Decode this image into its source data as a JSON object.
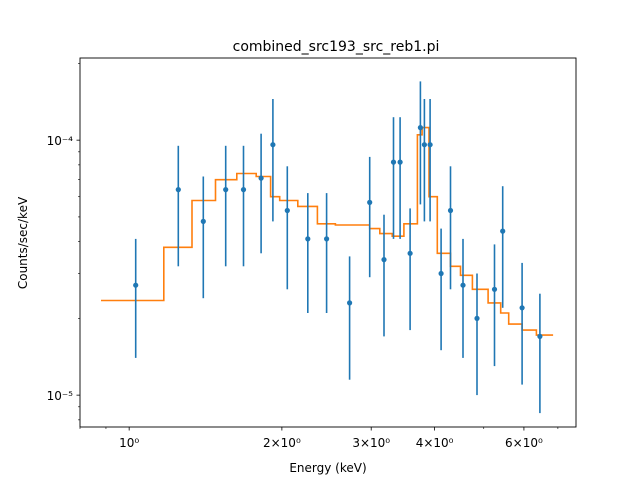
{
  "chart_data": {
    "type": "scatter",
    "title": "combined_src193_src_reb1.pi",
    "xlabel": "Energy (keV)",
    "ylabel": "Counts/sec/keV",
    "xscale": "log",
    "yscale": "log",
    "xlim": [
      0.8,
      7.6
    ],
    "ylim": [
      7.5e-06,
      0.00021
    ],
    "grid": false,
    "x_ticks": [
      {
        "value": 1,
        "label": "10⁰"
      },
      {
        "value": 2,
        "label": "2×10⁰"
      },
      {
        "value": 3,
        "label": "3×10⁰"
      },
      {
        "value": 4,
        "label": "4×10⁰"
      },
      {
        "value": 6,
        "label": "6×10⁰"
      }
    ],
    "y_ticks": [
      {
        "value": 1e-05,
        "label": "10⁻⁵"
      },
      {
        "value": 0.0001,
        "label": "10⁻⁴"
      }
    ],
    "series": [
      {
        "kind": "errorbar",
        "color": "#1f77b4",
        "points": [
          {
            "x": 1.03,
            "y": 2.7e-05,
            "lo": 1.4e-05,
            "hi": 4.1e-05
          },
          {
            "x": 1.25,
            "y": 6.4e-05,
            "lo": 3.2e-05,
            "hi": 9.5e-05
          },
          {
            "x": 1.4,
            "y": 4.8e-05,
            "lo": 2.4e-05,
            "hi": 7.2e-05
          },
          {
            "x": 1.55,
            "y": 6.4e-05,
            "lo": 3.2e-05,
            "hi": 9.5e-05
          },
          {
            "x": 1.68,
            "y": 6.4e-05,
            "lo": 3.2e-05,
            "hi": 9.5e-05
          },
          {
            "x": 1.82,
            "y": 7.1e-05,
            "lo": 3.6e-05,
            "hi": 0.000106
          },
          {
            "x": 1.92,
            "y": 9.6e-05,
            "lo": 4.8e-05,
            "hi": 0.000145
          },
          {
            "x": 2.05,
            "y": 5.3e-05,
            "lo": 2.6e-05,
            "hi": 7.9e-05
          },
          {
            "x": 2.25,
            "y": 4.1e-05,
            "lo": 2.1e-05,
            "hi": 6.2e-05
          },
          {
            "x": 2.45,
            "y": 4.1e-05,
            "lo": 2.1e-05,
            "hi": 6.2e-05
          },
          {
            "x": 2.72,
            "y": 2.3e-05,
            "lo": 1.15e-05,
            "hi": 3.5e-05
          },
          {
            "x": 2.98,
            "y": 5.7e-05,
            "lo": 2.9e-05,
            "hi": 8.6e-05
          },
          {
            "x": 3.18,
            "y": 3.4e-05,
            "lo": 1.7e-05,
            "hi": 5.1e-05
          },
          {
            "x": 3.32,
            "y": 8.2e-05,
            "lo": 4.1e-05,
            "hi": 0.000123
          },
          {
            "x": 3.42,
            "y": 8.2e-05,
            "lo": 4.1e-05,
            "hi": 0.000123
          },
          {
            "x": 3.58,
            "y": 3.6e-05,
            "lo": 1.8e-05,
            "hi": 5.4e-05
          },
          {
            "x": 3.75,
            "y": 0.000112,
            "lo": 5.6e-05,
            "hi": 0.00017
          },
          {
            "x": 3.82,
            "y": 9.6e-05,
            "lo": 4.8e-05,
            "hi": 0.000145
          },
          {
            "x": 3.92,
            "y": 9.6e-05,
            "lo": 4.8e-05,
            "hi": 0.000145
          },
          {
            "x": 4.12,
            "y": 3e-05,
            "lo": 1.5e-05,
            "hi": 4.5e-05
          },
          {
            "x": 4.3,
            "y": 5.3e-05,
            "lo": 2.6e-05,
            "hi": 7.9e-05
          },
          {
            "x": 4.55,
            "y": 2.7e-05,
            "lo": 1.4e-05,
            "hi": 4.1e-05
          },
          {
            "x": 4.85,
            "y": 2e-05,
            "lo": 1e-05,
            "hi": 3e-05
          },
          {
            "x": 5.25,
            "y": 2.6e-05,
            "lo": 1.3e-05,
            "hi": 3.9e-05
          },
          {
            "x": 5.45,
            "y": 4.4e-05,
            "lo": 2.2e-05,
            "hi": 6.6e-05
          },
          {
            "x": 5.95,
            "y": 2.2e-05,
            "lo": 1.1e-05,
            "hi": 3.3e-05
          },
          {
            "x": 6.45,
            "y": 1.7e-05,
            "lo": 8.5e-06,
            "hi": 2.5e-05
          }
        ]
      },
      {
        "kind": "step",
        "color": "#ff7f0e",
        "points": [
          {
            "x": 0.88,
            "y": 2.35e-05
          },
          {
            "x": 1.17,
            "y": 3.8e-05
          },
          {
            "x": 1.33,
            "y": 5.8e-05
          },
          {
            "x": 1.48,
            "y": 7e-05
          },
          {
            "x": 1.63,
            "y": 7.4e-05
          },
          {
            "x": 1.78,
            "y": 7.2e-05
          },
          {
            "x": 1.9,
            "y": 6e-05
          },
          {
            "x": 1.98,
            "y": 5.8e-05
          },
          {
            "x": 2.15,
            "y": 5.5e-05
          },
          {
            "x": 2.35,
            "y": 4.7e-05
          },
          {
            "x": 2.55,
            "y": 4.65e-05
          },
          {
            "x": 2.98,
            "y": 4.5e-05
          },
          {
            "x": 3.12,
            "y": 4.3e-05
          },
          {
            "x": 3.3,
            "y": 4.2e-05
          },
          {
            "x": 3.48,
            "y": 4.7e-05
          },
          {
            "x": 3.7,
            "y": 0.000105
          },
          {
            "x": 3.78,
            "y": 0.000112
          },
          {
            "x": 3.9,
            "y": 6e-05
          },
          {
            "x": 4.05,
            "y": 3.6e-05
          },
          {
            "x": 4.3,
            "y": 3.2e-05
          },
          {
            "x": 4.5,
            "y": 2.95e-05
          },
          {
            "x": 4.75,
            "y": 2.6e-05
          },
          {
            "x": 5.1,
            "y": 2.3e-05
          },
          {
            "x": 5.4,
            "y": 2.1e-05
          },
          {
            "x": 5.6,
            "y": 1.9e-05
          },
          {
            "x": 5.95,
            "y": 1.8e-05
          },
          {
            "x": 6.35,
            "y": 1.72e-05
          },
          {
            "x": 6.85,
            "y": 1.72e-05
          }
        ]
      }
    ]
  }
}
